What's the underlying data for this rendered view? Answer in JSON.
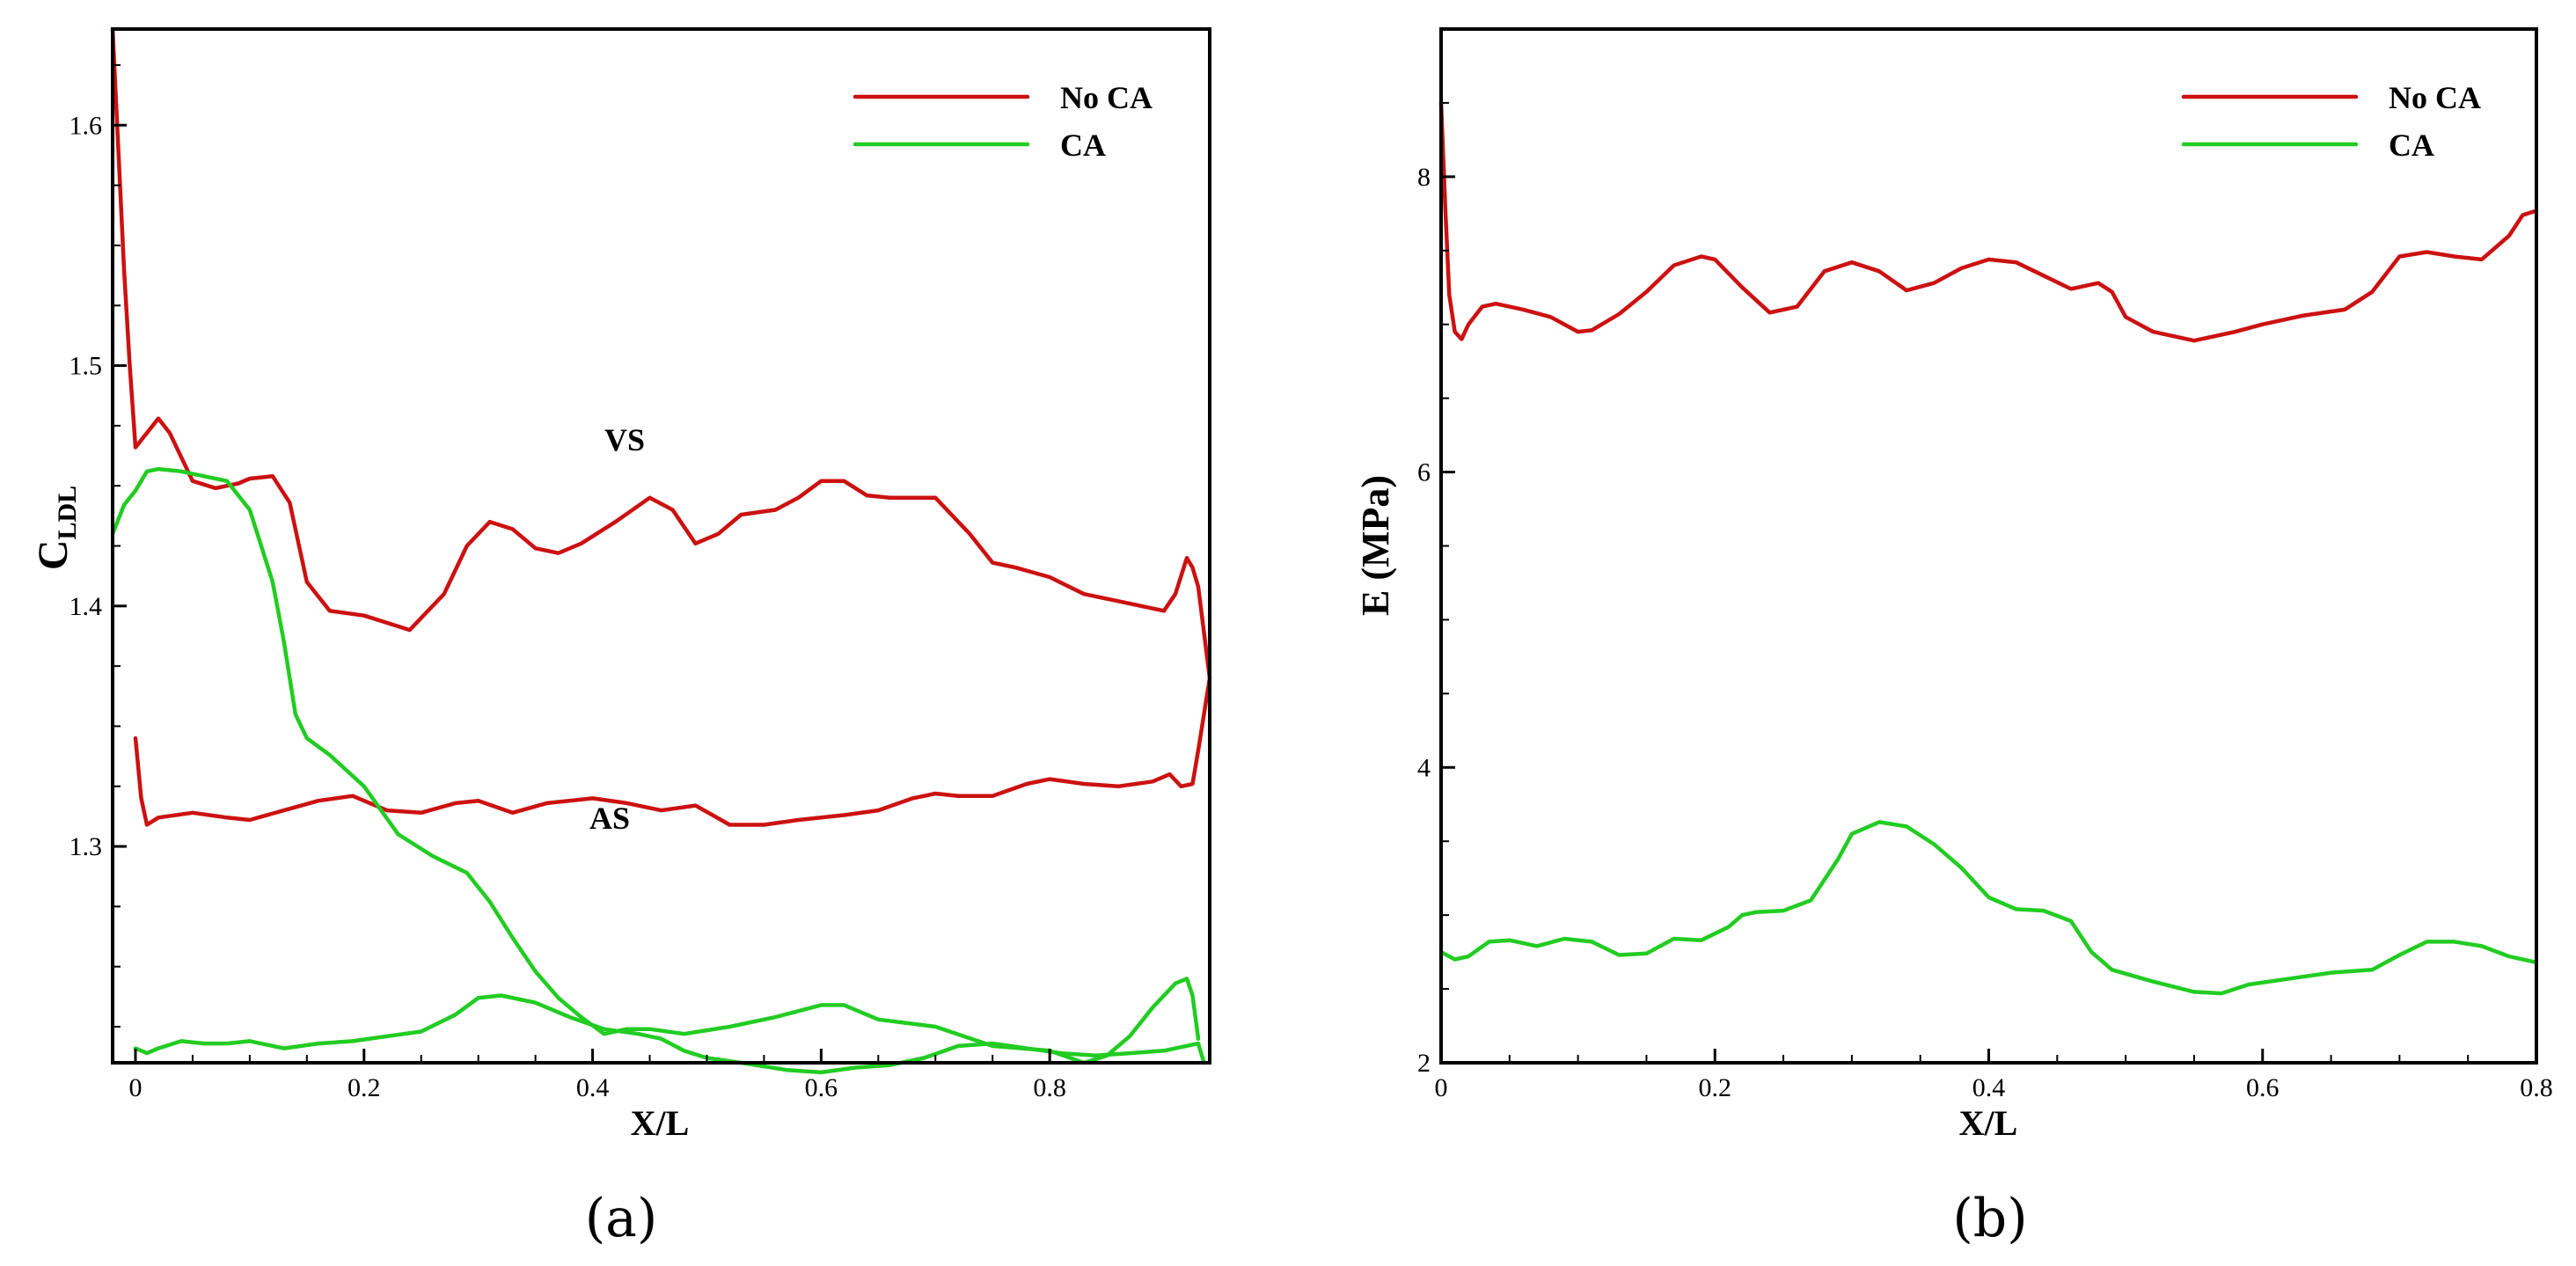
{
  "chart_data": [
    {
      "type": "line",
      "panel_label": "(a)",
      "xlabel": "X/L",
      "ylabel_main": "C",
      "ylabel_sub": "LDL",
      "xlim": [
        -0.02,
        0.94
      ],
      "ylim": [
        1.21,
        1.64
      ],
      "xticks": [
        0,
        0.2,
        0.4,
        0.6,
        0.8
      ],
      "xtick_labels": [
        "0",
        "0.2",
        "0.4",
        "0.6",
        "0.8"
      ],
      "yticks": [
        1.3,
        1.4,
        1.5,
        1.6
      ],
      "ytick_labels": [
        "1.3",
        "1.4",
        "1.5",
        "1.6"
      ],
      "legend": [
        {
          "label": "No CA",
          "color": "#cc1111"
        },
        {
          "label": "CA",
          "color": "#22cc22"
        }
      ],
      "annotations": [
        {
          "text": "VS",
          "x": 0.43,
          "y": 1.457
        },
        {
          "text": "AS",
          "x": 0.42,
          "y": 1.3
        }
      ],
      "series": [
        {
          "name": "No CA VS",
          "color": "#cc1111",
          "x": [
            -0.02,
            -0.015,
            -0.01,
            -0.005,
            0.0,
            0.01,
            0.02,
            0.03,
            0.05,
            0.07,
            0.09,
            0.1,
            0.12,
            0.135,
            0.15,
            0.17,
            0.2,
            0.22,
            0.24,
            0.27,
            0.29,
            0.31,
            0.33,
            0.35,
            0.37,
            0.39,
            0.42,
            0.45,
            0.47,
            0.49,
            0.51,
            0.53,
            0.56,
            0.58,
            0.6,
            0.62,
            0.64,
            0.66,
            0.7,
            0.73,
            0.75,
            0.77,
            0.8,
            0.83,
            0.86,
            0.9,
            0.91,
            0.92,
            0.925,
            0.93,
            0.94
          ],
          "y": [
            1.64,
            1.59,
            1.54,
            1.5,
            1.466,
            1.472,
            1.478,
            1.472,
            1.452,
            1.449,
            1.451,
            1.453,
            1.454,
            1.443,
            1.41,
            1.398,
            1.396,
            1.393,
            1.39,
            1.405,
            1.425,
            1.435,
            1.432,
            1.424,
            1.422,
            1.426,
            1.435,
            1.445,
            1.44,
            1.426,
            1.43,
            1.438,
            1.44,
            1.445,
            1.452,
            1.452,
            1.446,
            1.445,
            1.445,
            1.43,
            1.418,
            1.416,
            1.412,
            1.405,
            1.402,
            1.398,
            1.405,
            1.42,
            1.416,
            1.408,
            1.37
          ]
        },
        {
          "name": "No CA AS",
          "color": "#cc1111",
          "x": [
            0.0,
            0.005,
            0.01,
            0.02,
            0.05,
            0.08,
            0.1,
            0.13,
            0.16,
            0.19,
            0.22,
            0.25,
            0.28,
            0.3,
            0.33,
            0.36,
            0.4,
            0.43,
            0.46,
            0.49,
            0.52,
            0.55,
            0.58,
            0.62,
            0.65,
            0.68,
            0.7,
            0.72,
            0.75,
            0.78,
            0.8,
            0.83,
            0.86,
            0.89,
            0.905,
            0.915,
            0.925,
            0.93,
            0.94
          ],
          "y": [
            1.345,
            1.32,
            1.309,
            1.312,
            1.314,
            1.312,
            1.311,
            1.315,
            1.319,
            1.321,
            1.315,
            1.314,
            1.318,
            1.319,
            1.314,
            1.318,
            1.32,
            1.318,
            1.315,
            1.317,
            1.309,
            1.309,
            1.311,
            1.313,
            1.315,
            1.32,
            1.322,
            1.321,
            1.321,
            1.326,
            1.328,
            1.326,
            1.325,
            1.327,
            1.33,
            1.325,
            1.326,
            1.34,
            1.37
          ]
        },
        {
          "name": "CA VS",
          "color": "#22cc22",
          "x": [
            -0.02,
            -0.01,
            0.0,
            0.01,
            0.02,
            0.04,
            0.06,
            0.08,
            0.1,
            0.12,
            0.13,
            0.14,
            0.15,
            0.17,
            0.2,
            0.23,
            0.26,
            0.29,
            0.31,
            0.33,
            0.35,
            0.37,
            0.39,
            0.41,
            0.43,
            0.45,
            0.48,
            0.52,
            0.56,
            0.6,
            0.62,
            0.65,
            0.7,
            0.75,
            0.8,
            0.83,
            0.85,
            0.87,
            0.89,
            0.91,
            0.92,
            0.925,
            0.93
          ],
          "y": [
            1.43,
            1.442,
            1.448,
            1.456,
            1.457,
            1.456,
            1.454,
            1.452,
            1.44,
            1.41,
            1.385,
            1.355,
            1.345,
            1.338,
            1.325,
            1.305,
            1.296,
            1.289,
            1.277,
            1.262,
            1.248,
            1.237,
            1.229,
            1.222,
            1.224,
            1.224,
            1.222,
            1.225,
            1.229,
            1.234,
            1.234,
            1.228,
            1.225,
            1.217,
            1.215,
            1.21,
            1.213,
            1.221,
            1.233,
            1.243,
            1.245,
            1.238,
            1.22
          ]
        },
        {
          "name": "CA AS",
          "color": "#22cc22",
          "x": [
            0.0,
            0.01,
            0.02,
            0.04,
            0.06,
            0.08,
            0.1,
            0.13,
            0.16,
            0.19,
            0.22,
            0.25,
            0.28,
            0.3,
            0.32,
            0.35,
            0.38,
            0.41,
            0.44,
            0.46,
            0.48,
            0.5,
            0.53,
            0.57,
            0.6,
            0.63,
            0.66,
            0.69,
            0.72,
            0.75,
            0.78,
            0.81,
            0.84,
            0.87,
            0.9,
            0.93,
            0.935
          ],
          "y": [
            1.216,
            1.214,
            1.216,
            1.219,
            1.218,
            1.218,
            1.219,
            1.216,
            1.218,
            1.219,
            1.221,
            1.223,
            1.23,
            1.237,
            1.238,
            1.235,
            1.229,
            1.224,
            1.222,
            1.22,
            1.215,
            1.212,
            1.21,
            1.207,
            1.206,
            1.208,
            1.209,
            1.212,
            1.217,
            1.218,
            1.216,
            1.214,
            1.213,
            1.214,
            1.215,
            1.218,
            1.21
          ]
        }
      ]
    },
    {
      "type": "line",
      "panel_label": "(b)",
      "xlabel": "X/L",
      "ylabel": "E (MPa)",
      "xlim": [
        0,
        0.8
      ],
      "ylim": [
        2,
        9
      ],
      "xticks": [
        0,
        0.2,
        0.4,
        0.6,
        0.8
      ],
      "xtick_labels": [
        "0",
        "0.2",
        "0.4",
        "0.6",
        "0.8"
      ],
      "yticks": [
        2,
        4,
        6,
        8
      ],
      "ytick_labels": [
        "2",
        "4",
        "6",
        "8"
      ],
      "legend": [
        {
          "label": "No CA",
          "color": "#cc1111"
        },
        {
          "label": "CA",
          "color": "#22cc22"
        }
      ],
      "series": [
        {
          "name": "No CA",
          "color": "#cc1111",
          "x": [
            0.0,
            0.003,
            0.006,
            0.01,
            0.015,
            0.02,
            0.03,
            0.04,
            0.06,
            0.08,
            0.1,
            0.11,
            0.13,
            0.15,
            0.17,
            0.19,
            0.2,
            0.22,
            0.24,
            0.26,
            0.28,
            0.3,
            0.32,
            0.34,
            0.36,
            0.38,
            0.4,
            0.42,
            0.44,
            0.46,
            0.48,
            0.49,
            0.5,
            0.52,
            0.55,
            0.58,
            0.6,
            0.63,
            0.66,
            0.68,
            0.7,
            0.72,
            0.74,
            0.76,
            0.78,
            0.79,
            0.8
          ],
          "y": [
            8.5,
            7.8,
            7.2,
            6.95,
            6.9,
            7.0,
            7.12,
            7.14,
            7.1,
            7.05,
            6.95,
            6.96,
            7.07,
            7.22,
            7.4,
            7.46,
            7.44,
            7.25,
            7.08,
            7.12,
            7.36,
            7.42,
            7.36,
            7.23,
            7.28,
            7.38,
            7.44,
            7.42,
            7.33,
            7.24,
            7.28,
            7.22,
            7.05,
            6.95,
            6.89,
            6.95,
            7.0,
            7.06,
            7.1,
            7.22,
            7.46,
            7.49,
            7.46,
            7.44,
            7.6,
            7.74,
            7.77
          ]
        },
        {
          "name": "CA",
          "color": "#22cc22",
          "x": [
            0.0,
            0.01,
            0.02,
            0.035,
            0.05,
            0.07,
            0.09,
            0.11,
            0.13,
            0.15,
            0.17,
            0.19,
            0.21,
            0.22,
            0.23,
            0.25,
            0.27,
            0.29,
            0.3,
            0.32,
            0.34,
            0.36,
            0.38,
            0.4,
            0.42,
            0.44,
            0.46,
            0.475,
            0.49,
            0.52,
            0.55,
            0.57,
            0.59,
            0.62,
            0.65,
            0.68,
            0.7,
            0.72,
            0.74,
            0.76,
            0.78,
            0.8
          ],
          "y": [
            2.75,
            2.7,
            2.72,
            2.82,
            2.83,
            2.79,
            2.84,
            2.82,
            2.73,
            2.74,
            2.84,
            2.83,
            2.92,
            3.0,
            3.02,
            3.03,
            3.1,
            3.38,
            3.55,
            3.63,
            3.6,
            3.48,
            3.32,
            3.12,
            3.04,
            3.03,
            2.96,
            2.75,
            2.63,
            2.55,
            2.48,
            2.47,
            2.53,
            2.57,
            2.61,
            2.63,
            2.73,
            2.82,
            2.82,
            2.79,
            2.72,
            2.68
          ]
        }
      ]
    }
  ]
}
